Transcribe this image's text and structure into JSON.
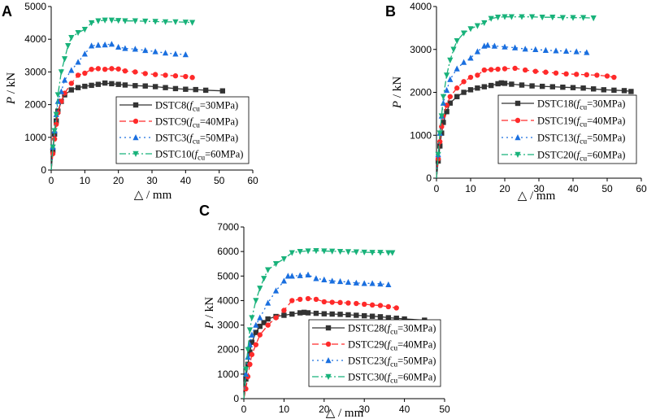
{
  "chart_data": [
    {
      "panel": "A",
      "type": "line",
      "xlabel": "△ / mm",
      "ylabel": "P / kN",
      "xlim": [
        0,
        60
      ],
      "ylim": [
        0,
        5000
      ],
      "xticks": [
        0,
        10,
        20,
        30,
        40,
        50,
        60
      ],
      "yticks": [
        0,
        1000,
        2000,
        3000,
        4000,
        5000
      ],
      "legend": "bottom-right",
      "series": [
        {
          "name": "DSTC8",
          "fcu": "=30MPa",
          "color": "#333333",
          "dash": "solid",
          "marker": "square",
          "x": [
            0,
            0.5,
            1,
            1.5,
            2,
            3,
            4,
            6,
            8,
            10,
            12,
            14,
            16,
            18,
            20,
            22,
            25,
            28,
            31,
            34,
            37,
            40,
            43,
            46,
            51
          ],
          "y": [
            0,
            600,
            1100,
            1500,
            1800,
            2100,
            2300,
            2450,
            2520,
            2560,
            2590,
            2620,
            2660,
            2640,
            2620,
            2600,
            2580,
            2570,
            2550,
            2520,
            2490,
            2470,
            2460,
            2440,
            2420
          ]
        },
        {
          "name": "DSTC9",
          "fcu": "=40MPa",
          "color": "#ff2a2a",
          "dash": "8,4",
          "marker": "circle",
          "x": [
            0,
            0.5,
            1,
            1.5,
            2,
            3,
            4,
            6,
            8,
            10,
            12,
            14,
            16,
            18,
            20,
            22,
            25,
            28,
            31,
            34,
            37,
            40,
            42
          ],
          "y": [
            0,
            500,
            950,
            1400,
            1750,
            2100,
            2350,
            2650,
            2900,
            2960,
            3080,
            3100,
            3080,
            3100,
            3090,
            3030,
            3000,
            2950,
            2920,
            2900,
            2880,
            2860,
            2830
          ]
        },
        {
          "name": "DSTC3",
          "fcu": "=50MPa",
          "color": "#1a6fdf",
          "dash": "2,4",
          "marker": "triangle-up",
          "x": [
            0,
            0.5,
            1,
            1.5,
            2,
            3,
            4,
            6,
            8,
            10,
            12,
            14,
            16,
            18,
            20,
            22,
            25,
            28,
            31,
            34,
            37,
            40
          ],
          "y": [
            0,
            700,
            1200,
            1700,
            2100,
            2400,
            2750,
            3050,
            3300,
            3550,
            3800,
            3820,
            3830,
            3850,
            3760,
            3720,
            3700,
            3660,
            3620,
            3580,
            3550,
            3530
          ]
        },
        {
          "name": "DSTC10",
          "fcu": "=60MPa",
          "color": "#18b27a",
          "dash": "8,3,2,3",
          "marker": "triangle-down",
          "x": [
            0,
            0.5,
            1,
            1.5,
            2,
            3,
            4,
            5,
            6,
            8,
            10,
            12,
            14,
            16,
            18,
            20,
            22,
            25,
            28,
            31,
            34,
            37,
            40,
            42
          ],
          "y": [
            0,
            700,
            1200,
            1700,
            2300,
            3000,
            3400,
            3800,
            4050,
            4200,
            4300,
            4500,
            4560,
            4580,
            4580,
            4570,
            4560,
            4560,
            4550,
            4540,
            4530,
            4530,
            4520,
            4510
          ]
        }
      ]
    },
    {
      "panel": "B",
      "type": "line",
      "xlabel": "△ / mm",
      "ylabel": "P / kN",
      "xlim": [
        0,
        60
      ],
      "ylim": [
        0,
        4000
      ],
      "xticks": [
        0,
        10,
        20,
        30,
        40,
        50,
        60
      ],
      "yticks": [
        0,
        1000,
        2000,
        3000,
        4000
      ],
      "legend": "bottom-right",
      "series": [
        {
          "name": "DSTC18",
          "fcu": "=30MPa",
          "color": "#333333",
          "dash": "solid",
          "marker": "square",
          "x": [
            0,
            0.5,
            1,
            1.5,
            2,
            3,
            4,
            6,
            8,
            10,
            12,
            14,
            16,
            18,
            19,
            20,
            22,
            25,
            28,
            31,
            34,
            37,
            40,
            43,
            46,
            49,
            52,
            55,
            57
          ],
          "y": [
            0,
            400,
            750,
            1050,
            1300,
            1550,
            1750,
            1900,
            2000,
            2060,
            2100,
            2130,
            2160,
            2200,
            2220,
            2210,
            2190,
            2170,
            2150,
            2140,
            2130,
            2120,
            2110,
            2100,
            2080,
            2060,
            2050,
            2040,
            2020
          ]
        },
        {
          "name": "DSTC19",
          "fcu": "=40MPa",
          "color": "#ff2a2a",
          "dash": "8,4",
          "marker": "circle",
          "x": [
            0,
            0.5,
            1,
            1.5,
            2,
            3,
            4,
            6,
            8,
            10,
            12,
            14,
            16,
            18,
            20,
            23,
            26,
            29,
            32,
            35,
            38,
            41,
            44,
            47,
            50,
            52
          ],
          "y": [
            0,
            450,
            850,
            1200,
            1450,
            1700,
            1900,
            2100,
            2250,
            2350,
            2400,
            2520,
            2530,
            2540,
            2550,
            2560,
            2520,
            2490,
            2470,
            2450,
            2430,
            2420,
            2410,
            2400,
            2380,
            2350
          ]
        },
        {
          "name": "DSTC13",
          "fcu": "=50MPa",
          "color": "#1a6fdf",
          "dash": "2,4",
          "marker": "triangle-up",
          "x": [
            0,
            0.5,
            1,
            1.5,
            2,
            3,
            4,
            6,
            8,
            10,
            12,
            14,
            15,
            17,
            20,
            23,
            26,
            29,
            32,
            35,
            38,
            41,
            44
          ],
          "y": [
            0,
            550,
            1050,
            1450,
            1750,
            2050,
            2300,
            2550,
            2700,
            2800,
            2950,
            3080,
            3100,
            3080,
            3060,
            3040,
            3010,
            3000,
            2980,
            2970,
            2960,
            2950,
            2930
          ]
        },
        {
          "name": "DSTC20",
          "fcu": "=60MPa",
          "color": "#18b27a",
          "dash": "8,3,2,3",
          "marker": "triangle-down",
          "x": [
            0,
            0.5,
            1,
            1.5,
            2,
            3,
            4,
            5,
            6,
            8,
            10,
            12,
            14,
            16,
            18,
            20,
            22,
            25,
            28,
            31,
            34,
            37,
            40,
            43,
            46
          ],
          "y": [
            0,
            550,
            1050,
            1450,
            1900,
            2400,
            2750,
            3000,
            3200,
            3380,
            3480,
            3550,
            3620,
            3720,
            3750,
            3760,
            3760,
            3760,
            3760,
            3750,
            3750,
            3740,
            3740,
            3740,
            3730
          ]
        }
      ]
    },
    {
      "panel": "C",
      "type": "line",
      "xlabel": "△ / mm",
      "ylabel": "P / kN",
      "xlim": [
        0,
        50
      ],
      "ylim": [
        0,
        7000
      ],
      "xticks": [
        0,
        10,
        20,
        30,
        40,
        50
      ],
      "yticks": [
        0,
        1000,
        2000,
        3000,
        4000,
        5000,
        6000,
        7000
      ],
      "legend": "bottom-right",
      "series": [
        {
          "name": "DSTC28",
          "fcu": "=30MPa",
          "color": "#333333",
          "dash": "solid",
          "marker": "square",
          "x": [
            0,
            0.5,
            1,
            1.5,
            2,
            3,
            4,
            5,
            6,
            8,
            10,
            12,
            14,
            15,
            16,
            18,
            20,
            22,
            24,
            26,
            28,
            30,
            32,
            34,
            36,
            38,
            40,
            45
          ],
          "y": [
            0,
            800,
            1400,
            1900,
            2300,
            2700,
            2950,
            3100,
            3250,
            3350,
            3400,
            3450,
            3500,
            3520,
            3500,
            3480,
            3460,
            3450,
            3440,
            3420,
            3400,
            3380,
            3360,
            3340,
            3300,
            3280,
            3250,
            3200
          ]
        },
        {
          "name": "DSTC29",
          "fcu": "=40MPa",
          "color": "#ff2a2a",
          "dash": "8,4",
          "marker": "circle",
          "x": [
            0,
            0.5,
            1,
            1.5,
            2,
            3,
            4,
            6,
            8,
            10,
            12,
            14,
            16,
            18,
            20,
            22,
            24,
            26,
            28,
            30,
            32,
            34,
            36,
            38
          ],
          "y": [
            0,
            400,
            900,
            1400,
            1800,
            2200,
            2600,
            3000,
            3300,
            3600,
            4000,
            4050,
            4080,
            4050,
            3950,
            3930,
            3920,
            3900,
            3880,
            3850,
            3820,
            3800,
            3750,
            3700
          ]
        },
        {
          "name": "DSTC23",
          "fcu": "=50MPa",
          "color": "#1a6fdf",
          "dash": "2,4",
          "marker": "triangle-up",
          "x": [
            0,
            0.5,
            1,
            1.5,
            2,
            3,
            4,
            6,
            8,
            10,
            11,
            12,
            14,
            16,
            18,
            20,
            22,
            24,
            26,
            28,
            30,
            32,
            34,
            36
          ],
          "y": [
            0,
            1000,
            1700,
            2200,
            2600,
            3000,
            3300,
            3900,
            4400,
            4800,
            5000,
            5000,
            5020,
            5050,
            4900,
            4850,
            4800,
            4780,
            4750,
            4720,
            4700,
            4700,
            4680,
            4650
          ]
        },
        {
          "name": "DSTC30",
          "fcu": "=60MPa",
          "color": "#18b27a",
          "dash": "8,3,2,3",
          "marker": "triangle-down",
          "x": [
            0,
            0.5,
            1,
            1.5,
            2,
            3,
            4,
            5,
            6,
            8,
            10,
            12,
            14,
            16,
            18,
            20,
            22,
            24,
            26,
            28,
            30,
            32,
            34,
            36,
            37
          ],
          "y": [
            0,
            1200,
            2000,
            2800,
            3300,
            4000,
            4500,
            4900,
            5250,
            5500,
            5700,
            5950,
            6000,
            6020,
            6030,
            6020,
            6010,
            6000,
            5990,
            5980,
            5970,
            5960,
            5960,
            5950,
            5950
          ]
        }
      ]
    }
  ],
  "axis_symbols": {
    "p": "P",
    "kn": " / kN",
    "delta": "△",
    "mm": " / mm",
    "f": "f",
    "cu": "cu"
  }
}
